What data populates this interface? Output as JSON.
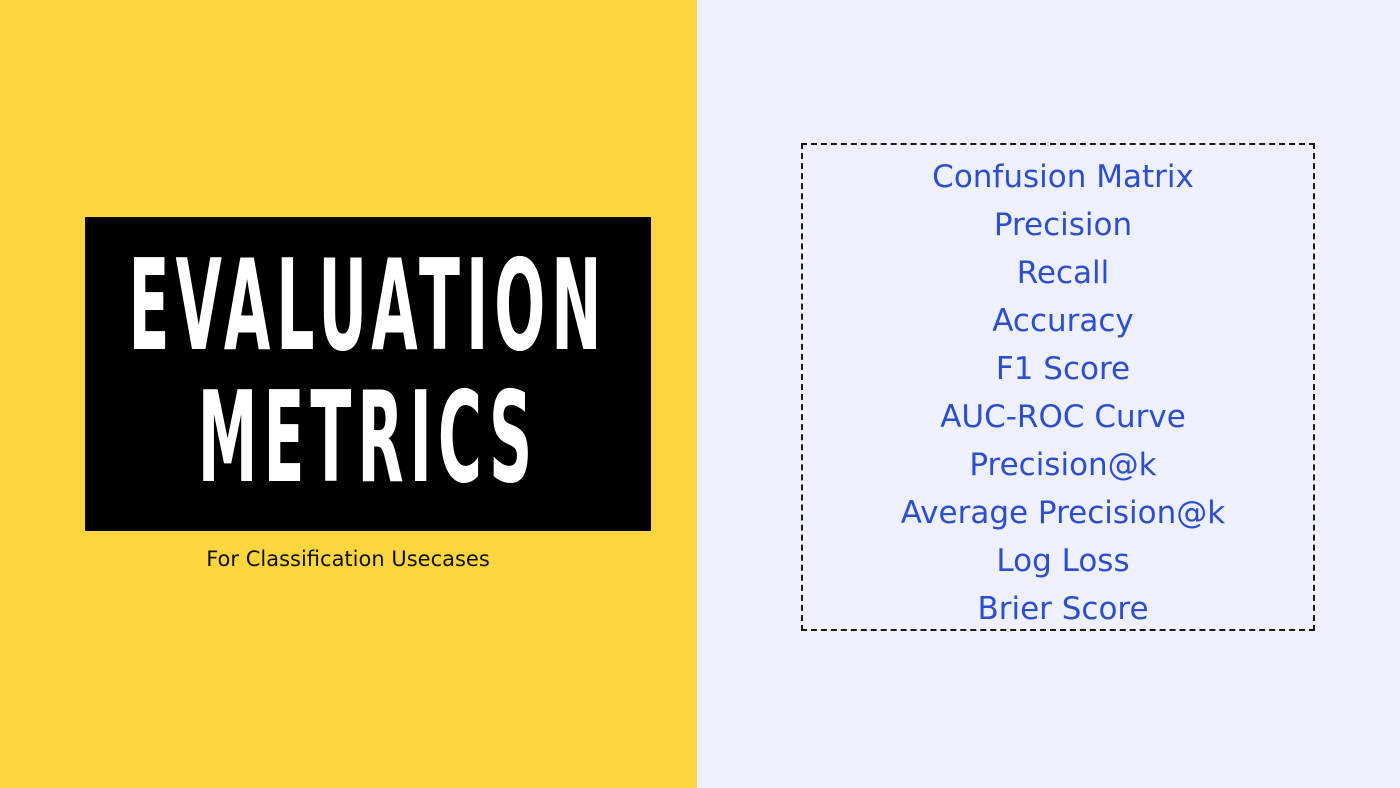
{
  "colors": {
    "left_background": "#fdd63d",
    "right_background": "#eef1fd",
    "title_block": "#000000",
    "title_text": "#ffffff",
    "metric_text": "#2d4ed0"
  },
  "title": {
    "line1": "EVALUATION",
    "line2": "METRICS"
  },
  "subtitle": "For Classification Usecases",
  "metrics": [
    "Confusion Matrix",
    "Precision",
    "Recall",
    "Accuracy",
    "F1 Score",
    "AUC-ROC Curve",
    "Precision@k",
    "Average Precision@k",
    "Log Loss",
    "Brier Score"
  ]
}
